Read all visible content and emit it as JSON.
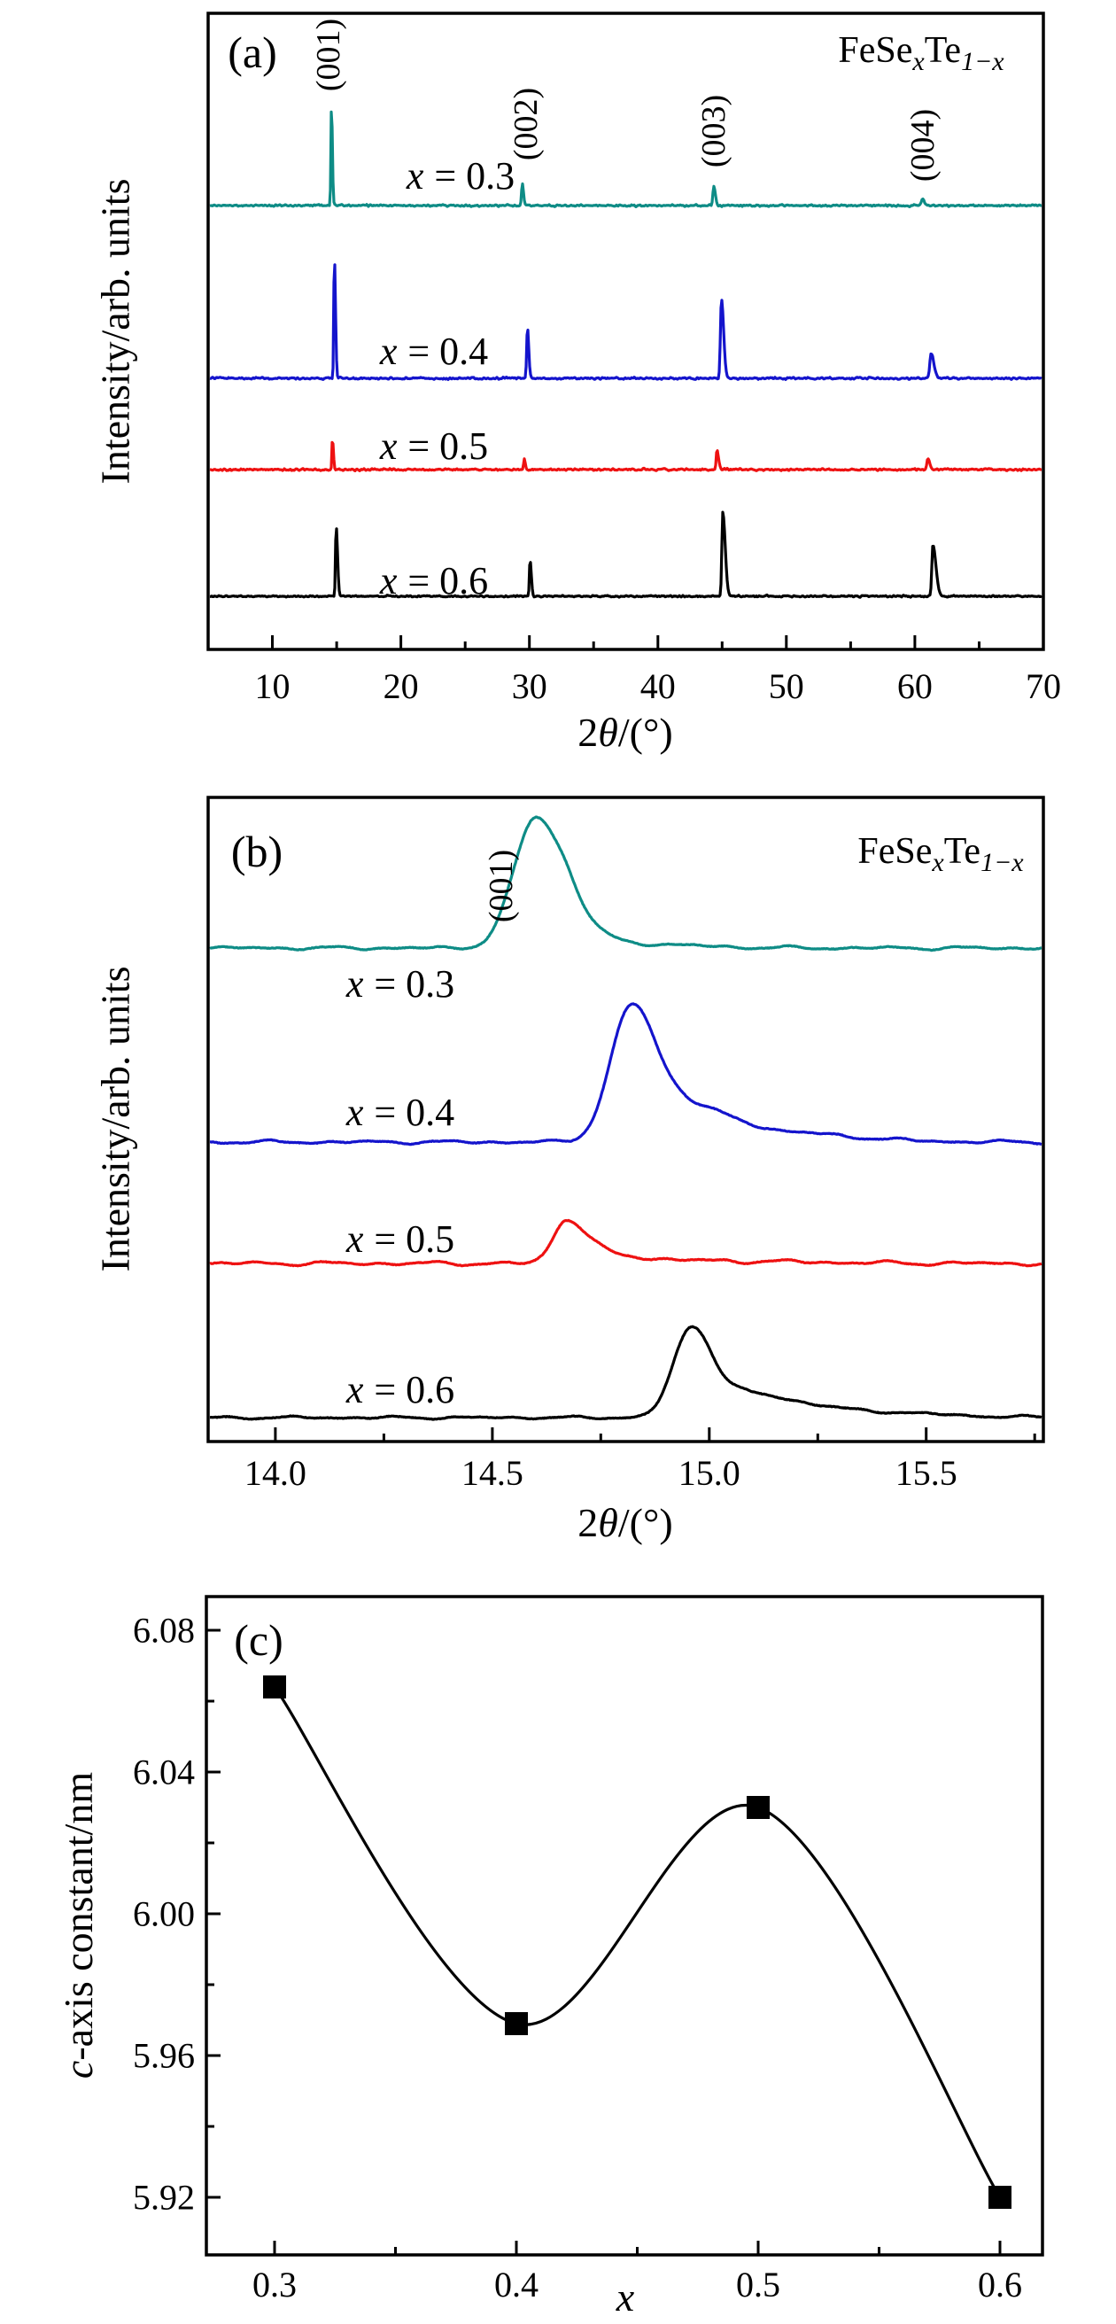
{
  "chart_data": [
    {
      "id": "a",
      "type": "line",
      "tag": "(a)",
      "formula": {
        "base1": "FeSe",
        "sub1": "x",
        "base2": "Te",
        "sub2": "1−x"
      },
      "xlabel": {
        "pre": "2",
        "var": "θ",
        "post": "/(°)"
      },
      "ylabel": "Intensity/arb. units",
      "xlim": [
        5,
        70
      ],
      "xticks": [
        10,
        20,
        30,
        40,
        50,
        60,
        70
      ],
      "xtick_labels": [
        "10",
        "20",
        "30",
        "40",
        "50",
        "60",
        "70"
      ],
      "minor_xtick_step": 5,
      "peak_labels": [
        "(001)",
        "(002)",
        "(003)",
        "(004)"
      ],
      "legend_position": "none",
      "grid": false,
      "series": [
        {
          "label": {
            "var": "x",
            "rest": "= 0.3"
          },
          "color": "#0e8c86",
          "seed": 11,
          "noise_amp": 1.3,
          "peaks": [
            [
              14.6,
              115,
              0.045,
              0.07
            ],
            [
              29.45,
              26,
              0.06,
              0.09
            ],
            [
              44.35,
              22,
              0.07,
              0.12
            ],
            [
              60.6,
              8,
              0.09,
              0.14
            ]
          ]
        },
        {
          "label": {
            "var": "x",
            "rest": "= 0.4"
          },
          "color": "#1414cc",
          "seed": 22,
          "noise_amp": 1.4,
          "peaks": [
            [
              14.82,
              140,
              0.045,
              0.09
            ],
            [
              29.85,
              58,
              0.06,
              0.1
            ],
            [
              44.95,
              90,
              0.08,
              0.17
            ],
            [
              61.25,
              28,
              0.09,
              0.22
            ]
          ]
        },
        {
          "label": {
            "var": "x",
            "rest": "= 0.5"
          },
          "color": "#ee1111",
          "seed": 33,
          "noise_amp": 1.4,
          "peaks": [
            [
              14.67,
              35,
              0.04,
              0.08
            ],
            [
              29.6,
              12,
              0.05,
              0.08
            ],
            [
              44.6,
              22,
              0.06,
              0.12
            ],
            [
              61.0,
              13,
              0.07,
              0.15
            ]
          ]
        },
        {
          "label": {
            "var": "x",
            "rest": "= 0.6"
          },
          "color": "#000000",
          "seed": 44,
          "noise_amp": 1.2,
          "peaks": [
            [
              14.96,
              80,
              0.05,
              0.11
            ],
            [
              30.05,
              41,
              0.05,
              0.1
            ],
            [
              45.05,
              95,
              0.07,
              0.19
            ],
            [
              61.4,
              58,
              0.08,
              0.24
            ]
          ]
        }
      ]
    },
    {
      "id": "b",
      "type": "line",
      "tag": "(b)",
      "formula": {
        "base1": "FeSe",
        "sub1": "x",
        "base2": "Te",
        "sub2": "1−x"
      },
      "xlabel": {
        "pre": "2",
        "var": "θ",
        "post": "/(°)"
      },
      "ylabel": "Intensity/arb. units",
      "xlim": [
        13.845,
        15.77
      ],
      "xticks": [
        14.0,
        14.5,
        15.0,
        15.5
      ],
      "xtick_labels": [
        "14.0",
        "14.5",
        "15.0",
        "15.5"
      ],
      "minor_xtick_step": 0.25,
      "peak_labels": [
        "(001)"
      ],
      "legend_position": "none",
      "grid": false,
      "series": [
        {
          "label": {
            "var": "x",
            "rest": "= 0.3"
          },
          "color": "#0e8c86",
          "seed": 55,
          "noise_amp": 1.0,
          "peaks": [
            [
              14.6,
              147,
              0.05,
              0.062
            ],
            [
              14.68,
              20,
              0.03,
              0.06
            ],
            [
              14.8,
              5,
              0.06,
              0.15
            ]
          ]
        },
        {
          "label": {
            "var": "x",
            "rest": "= 0.4"
          },
          "color": "#1414cc",
          "seed": 66,
          "noise_amp": 1.0,
          "peaks": [
            [
              14.82,
              150,
              0.048,
              0.055
            ],
            [
              14.94,
              40,
              0.06,
              0.09
            ],
            [
              15.12,
              12,
              0.1,
              0.18
            ]
          ]
        },
        {
          "label": {
            "var": "x",
            "rest": "= 0.5"
          },
          "color": "#ee1111",
          "seed": 77,
          "noise_amp": 1.2,
          "peaks": [
            [
              14.67,
              48,
              0.03,
              0.045
            ],
            [
              14.75,
              9,
              0.04,
              0.09
            ],
            [
              14.95,
              3,
              0.1,
              0.25
            ]
          ]
        },
        {
          "label": {
            "var": "x",
            "rest": "= 0.6"
          },
          "color": "#000000",
          "seed": 88,
          "noise_amp": 0.8,
          "peaks": [
            [
              14.96,
              102,
              0.042,
              0.05
            ],
            [
              15.09,
              26,
              0.05,
              0.1
            ],
            [
              15.28,
              8,
              0.08,
              0.2
            ]
          ]
        }
      ]
    },
    {
      "id": "c",
      "type": "scatter-line",
      "tag": "(c)",
      "xlabel": "x",
      "ylabel": {
        "var": "c",
        "rest": "-axis constant/nm"
      },
      "x": [
        0.3,
        0.4,
        0.5,
        0.6
      ],
      "y": [
        6.064,
        5.969,
        6.03,
        5.92
      ],
      "xlim": [
        0.2718,
        0.6176
      ],
      "ylim": [
        5.90375,
        6.0895
      ],
      "xticks": [
        0.3,
        0.4,
        0.5,
        0.6
      ],
      "xtick_labels": [
        "0.3",
        "0.4",
        "0.5",
        "0.6"
      ],
      "yticks": [
        5.92,
        5.96,
        6.0,
        6.04,
        6.08
      ],
      "ytick_labels": [
        "5.92",
        "5.96",
        "6.00",
        "6.04",
        "6.08"
      ],
      "minor_xtick_step": 0.05,
      "minor_ytick_step": 0.02,
      "marker": "square",
      "color": "#000000",
      "legend_position": "none",
      "grid": false
    }
  ]
}
